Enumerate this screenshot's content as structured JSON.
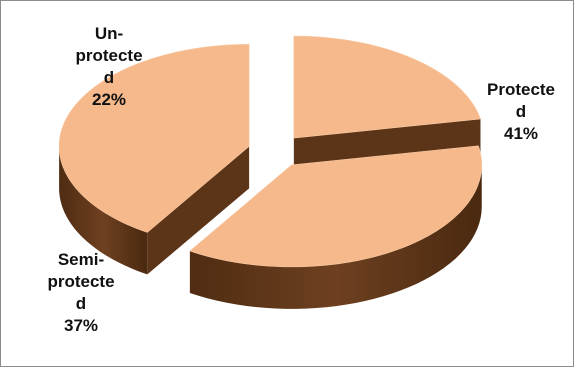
{
  "chart_data": {
    "type": "pie",
    "style": "3d-exploded",
    "slice_color": "#f6b98b",
    "side_color": "#6e4020",
    "slices": [
      {
        "label_lines": [
          "Protecte",
          "d"
        ],
        "label": "Protected",
        "value": 41,
        "value_label": "41%"
      },
      {
        "label_lines": [
          "Semi-",
          "protecte",
          "d"
        ],
        "label": "Semi-protected",
        "value": 37,
        "value_label": "37%"
      },
      {
        "label_lines": [
          "Un-",
          "protecte",
          "d"
        ],
        "label": "Un-protected",
        "value": 22,
        "value_label": "22%"
      }
    ]
  }
}
